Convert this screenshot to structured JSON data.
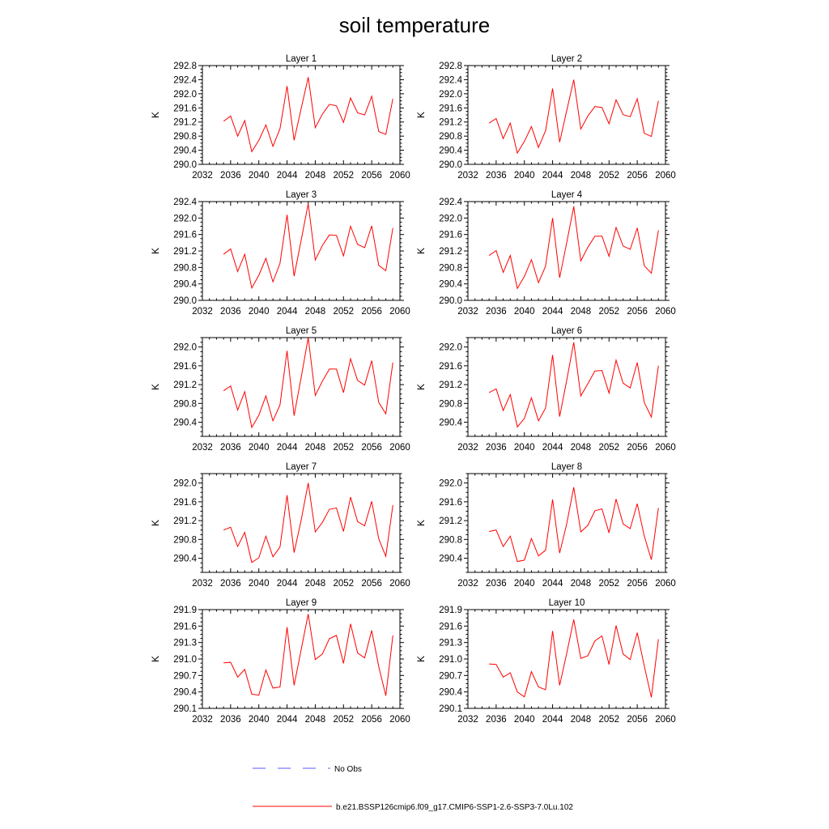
{
  "title": "soil temperature",
  "colors": {
    "model": "#ff0000",
    "obs": "#5a5aff",
    "axis": "#000000"
  },
  "legend": {
    "obs_label": "No Obs",
    "model_label": "b.e21.BSSP126cmip6.f09_g17.CMIP6-SSP1-2.6-SSP3-7.0Lu.102"
  },
  "chart_data": [
    {
      "type": "line",
      "title": "Layer 1",
      "ylabel": "K",
      "xlim": [
        2032,
        2060
      ],
      "ylim": [
        290.0,
        292.8
      ],
      "xticks": [
        2032,
        2036,
        2040,
        2044,
        2048,
        2052,
        2056,
        2060
      ],
      "yticks": [
        "290.0",
        "290.4",
        "290.8",
        "291.2",
        "291.6",
        "292.0",
        "292.4",
        "292.8"
      ],
      "series": [
        {
          "x": [
            2035,
            2036,
            2037,
            2038,
            2039,
            2040,
            2041,
            2042,
            2043,
            2044,
            2045,
            2046,
            2047,
            2048,
            2049,
            2050,
            2051,
            2052,
            2053,
            2054,
            2055,
            2056,
            2057,
            2058,
            2059
          ],
          "values": [
            291.22,
            291.37,
            290.8,
            291.24,
            290.36,
            290.68,
            291.12,
            290.51,
            291.01,
            292.22,
            290.68,
            291.58,
            292.47,
            291.04,
            291.42,
            291.7,
            291.66,
            291.19,
            291.88,
            291.46,
            291.4,
            291.93,
            290.93,
            290.85,
            291.86
          ]
        }
      ]
    },
    {
      "type": "line",
      "title": "Layer 2",
      "ylabel": "K",
      "xlim": [
        2032,
        2060
      ],
      "ylim": [
        290.0,
        292.8
      ],
      "xticks": [
        2032,
        2036,
        2040,
        2044,
        2048,
        2052,
        2056,
        2060
      ],
      "yticks": [
        "290.0",
        "290.4",
        "290.8",
        "291.2",
        "291.6",
        "292.0",
        "292.4",
        "292.8"
      ],
      "series": [
        {
          "x": [
            2035,
            2036,
            2037,
            2038,
            2039,
            2040,
            2041,
            2042,
            2043,
            2044,
            2045,
            2046,
            2047,
            2048,
            2049,
            2050,
            2051,
            2052,
            2053,
            2054,
            2055,
            2056,
            2057,
            2058,
            2059
          ],
          "values": [
            291.17,
            291.3,
            290.73,
            291.17,
            290.32,
            290.65,
            291.07,
            290.48,
            290.95,
            292.15,
            290.63,
            291.52,
            292.4,
            291.0,
            291.37,
            291.64,
            291.61,
            291.15,
            291.83,
            291.41,
            291.35,
            291.86,
            290.88,
            290.79,
            291.8
          ]
        }
      ]
    },
    {
      "type": "line",
      "title": "Layer 3",
      "ylabel": "K",
      "xlim": [
        2032,
        2060
      ],
      "ylim": [
        290.0,
        292.4
      ],
      "xticks": [
        2032,
        2036,
        2040,
        2044,
        2048,
        2052,
        2056,
        2060
      ],
      "yticks": [
        "290.0",
        "290.4",
        "290.8",
        "291.2",
        "291.6",
        "292.0",
        "292.4"
      ],
      "series": [
        {
          "x": [
            2035,
            2036,
            2037,
            2038,
            2039,
            2040,
            2041,
            2042,
            2043,
            2044,
            2045,
            2046,
            2047,
            2048,
            2049,
            2050,
            2051,
            2052,
            2053,
            2054,
            2055,
            2056,
            2057,
            2058,
            2059
          ],
          "values": [
            291.12,
            291.25,
            290.7,
            291.12,
            290.3,
            290.61,
            291.02,
            290.45,
            290.9,
            292.08,
            290.59,
            291.46,
            292.35,
            290.98,
            291.33,
            291.59,
            291.58,
            291.08,
            291.8,
            291.36,
            291.28,
            291.81,
            290.85,
            290.72,
            291.76
          ]
        }
      ]
    },
    {
      "type": "line",
      "title": "Layer 4",
      "ylabel": "K",
      "xlim": [
        2032,
        2060
      ],
      "ylim": [
        290.0,
        292.4
      ],
      "xticks": [
        2032,
        2036,
        2040,
        2044,
        2048,
        2052,
        2056,
        2060
      ],
      "yticks": [
        "290.0",
        "290.4",
        "290.8",
        "291.2",
        "291.6",
        "292.0",
        "292.4"
      ],
      "series": [
        {
          "x": [
            2035,
            2036,
            2037,
            2038,
            2039,
            2040,
            2041,
            2042,
            2043,
            2044,
            2045,
            2046,
            2047,
            2048,
            2049,
            2050,
            2051,
            2052,
            2053,
            2054,
            2055,
            2056,
            2057,
            2058,
            2059
          ],
          "values": [
            291.09,
            291.21,
            290.68,
            291.09,
            290.29,
            290.58,
            290.99,
            290.43,
            290.83,
            292.0,
            290.55,
            291.4,
            292.28,
            290.96,
            291.29,
            291.56,
            291.56,
            291.07,
            291.77,
            291.32,
            291.24,
            291.76,
            290.84,
            290.66,
            291.7
          ]
        }
      ]
    },
    {
      "type": "line",
      "title": "Layer 5",
      "ylabel": "K",
      "xlim": [
        2032,
        2060
      ],
      "ylim": [
        290.1,
        292.2
      ],
      "xticks": [
        2032,
        2036,
        2040,
        2044,
        2048,
        2052,
        2056,
        2060
      ],
      "yticks": [
        "290.4",
        "290.8",
        "291.2",
        "291.6",
        "292.0"
      ],
      "series": [
        {
          "x": [
            2035,
            2036,
            2037,
            2038,
            2039,
            2040,
            2041,
            2042,
            2043,
            2044,
            2045,
            2046,
            2047,
            2048,
            2049,
            2050,
            2051,
            2052,
            2053,
            2054,
            2055,
            2056,
            2057,
            2058,
            2059
          ],
          "values": [
            291.07,
            291.17,
            290.66,
            291.05,
            290.29,
            290.55,
            290.96,
            290.43,
            290.77,
            291.92,
            290.54,
            291.35,
            292.2,
            290.97,
            291.27,
            291.53,
            291.53,
            291.03,
            291.75,
            291.29,
            291.19,
            291.71,
            290.82,
            290.58,
            291.67
          ]
        }
      ]
    },
    {
      "type": "line",
      "title": "Layer 6",
      "ylabel": "K",
      "xlim": [
        2032,
        2060
      ],
      "ylim": [
        290.1,
        292.2
      ],
      "xticks": [
        2032,
        2036,
        2040,
        2044,
        2048,
        2052,
        2056,
        2060
      ],
      "yticks": [
        "290.4",
        "290.8",
        "291.2",
        "291.6",
        "292.0"
      ],
      "series": [
        {
          "x": [
            2035,
            2036,
            2037,
            2038,
            2039,
            2040,
            2041,
            2042,
            2043,
            2044,
            2045,
            2046,
            2047,
            2048,
            2049,
            2050,
            2051,
            2052,
            2053,
            2054,
            2055,
            2056,
            2057,
            2058,
            2059
          ],
          "values": [
            291.03,
            291.11,
            290.65,
            290.99,
            290.3,
            290.48,
            290.92,
            290.43,
            290.7,
            291.83,
            290.52,
            291.29,
            292.1,
            290.96,
            291.22,
            291.49,
            291.5,
            291.02,
            291.72,
            291.23,
            291.13,
            291.67,
            290.82,
            290.51,
            291.6
          ]
        }
      ]
    },
    {
      "type": "line",
      "title": "Layer 7",
      "ylabel": "K",
      "xlim": [
        2032,
        2060
      ],
      "ylim": [
        290.1,
        292.2
      ],
      "xticks": [
        2032,
        2036,
        2040,
        2044,
        2048,
        2052,
        2056,
        2060
      ],
      "yticks": [
        "290.4",
        "290.8",
        "291.2",
        "291.6",
        "292.0"
      ],
      "series": [
        {
          "x": [
            2035,
            2036,
            2037,
            2038,
            2039,
            2040,
            2041,
            2042,
            2043,
            2044,
            2045,
            2046,
            2047,
            2048,
            2049,
            2050,
            2051,
            2052,
            2053,
            2054,
            2055,
            2056,
            2057,
            2058,
            2059
          ],
          "values": [
            291.0,
            291.06,
            290.65,
            290.95,
            290.31,
            290.41,
            290.87,
            290.43,
            290.64,
            291.74,
            290.52,
            291.21,
            292.0,
            290.96,
            291.16,
            291.44,
            291.47,
            290.97,
            291.7,
            291.18,
            291.09,
            291.61,
            290.81,
            290.44,
            291.53
          ]
        }
      ]
    },
    {
      "type": "line",
      "title": "Layer 8",
      "ylabel": "K",
      "xlim": [
        2032,
        2060
      ],
      "ylim": [
        290.1,
        292.2
      ],
      "xticks": [
        2032,
        2036,
        2040,
        2044,
        2048,
        2052,
        2056,
        2060
      ],
      "yticks": [
        "290.4",
        "290.8",
        "291.2",
        "291.6",
        "292.0"
      ],
      "series": [
        {
          "x": [
            2035,
            2036,
            2037,
            2038,
            2039,
            2040,
            2041,
            2042,
            2043,
            2044,
            2045,
            2046,
            2047,
            2048,
            2049,
            2050,
            2051,
            2052,
            2053,
            2054,
            2055,
            2056,
            2057,
            2058,
            2059
          ],
          "values": [
            290.97,
            291.0,
            290.65,
            290.87,
            290.33,
            290.36,
            290.82,
            290.45,
            290.57,
            291.65,
            290.51,
            291.13,
            291.91,
            290.96,
            291.1,
            291.41,
            291.45,
            290.94,
            291.66,
            291.13,
            291.03,
            291.56,
            290.87,
            290.37,
            291.47
          ]
        }
      ]
    },
    {
      "type": "line",
      "title": "Layer 9",
      "ylabel": "K",
      "xlim": [
        2032,
        2060
      ],
      "ylim": [
        290.1,
        291.9
      ],
      "xticks": [
        2032,
        2036,
        2040,
        2044,
        2048,
        2052,
        2056,
        2060
      ],
      "yticks": [
        "290.1",
        "290.4",
        "290.7",
        "291.0",
        "291.3",
        "291.6",
        "291.9"
      ],
      "series": [
        {
          "x": [
            2035,
            2036,
            2037,
            2038,
            2039,
            2040,
            2041,
            2042,
            2043,
            2044,
            2045,
            2046,
            2047,
            2048,
            2049,
            2050,
            2051,
            2052,
            2053,
            2054,
            2055,
            2056,
            2057,
            2058,
            2059
          ],
          "values": [
            290.93,
            290.94,
            290.67,
            290.81,
            290.36,
            290.34,
            290.8,
            290.47,
            290.49,
            291.58,
            290.52,
            291.17,
            291.82,
            290.99,
            291.09,
            291.37,
            291.43,
            290.92,
            291.64,
            291.11,
            291.02,
            291.52,
            290.86,
            290.33,
            291.43
          ]
        }
      ]
    },
    {
      "type": "line",
      "title": "Layer 10",
      "ylabel": "K",
      "xlim": [
        2032,
        2060
      ],
      "ylim": [
        290.1,
        291.9
      ],
      "xticks": [
        2032,
        2036,
        2040,
        2044,
        2048,
        2052,
        2056,
        2060
      ],
      "yticks": [
        "290.1",
        "290.4",
        "290.7",
        "291.0",
        "291.3",
        "291.6",
        "291.9"
      ],
      "series": [
        {
          "x": [
            2035,
            2036,
            2037,
            2038,
            2039,
            2040,
            2041,
            2042,
            2043,
            2044,
            2045,
            2046,
            2047,
            2048,
            2049,
            2050,
            2051,
            2052,
            2053,
            2054,
            2055,
            2056,
            2057,
            2058,
            2059
          ],
          "values": [
            290.91,
            290.9,
            290.67,
            290.75,
            290.4,
            290.31,
            290.77,
            290.49,
            290.44,
            291.51,
            290.52,
            291.1,
            291.72,
            291.01,
            291.06,
            291.33,
            291.42,
            290.9,
            291.61,
            291.09,
            290.99,
            291.48,
            290.87,
            290.3,
            291.36
          ]
        }
      ]
    }
  ]
}
